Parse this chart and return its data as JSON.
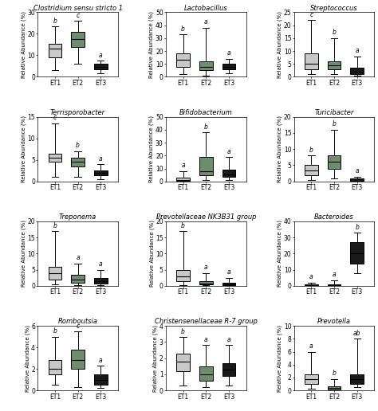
{
  "panels": [
    {
      "title": "Clostridium sensu stricto 1",
      "ylim": [
        0,
        30
      ],
      "yticks": [
        0,
        10,
        20,
        30
      ],
      "boxes": [
        {
          "label": "ET1",
          "whislo": 3.0,
          "q1": 9.0,
          "med": 13.0,
          "q3": 15.5,
          "whishi": 23.5,
          "sig": "b",
          "color": "#c8c8c8"
        },
        {
          "label": "ET2",
          "whislo": 6.0,
          "q1": 14.0,
          "med": 17.5,
          "q3": 21.0,
          "whishi": 26.0,
          "sig": "c",
          "color": "#6e8c6e"
        },
        {
          "label": "ET3",
          "whislo": 1.5,
          "q1": 3.5,
          "med": 4.5,
          "q3": 6.0,
          "whishi": 7.5,
          "sig": "a",
          "color": "#1a1a1a"
        }
      ]
    },
    {
      "title": "Lactobacillus",
      "ylim": [
        0,
        50
      ],
      "yticks": [
        0,
        10,
        20,
        30,
        40,
        50
      ],
      "boxes": [
        {
          "label": "ET1",
          "whislo": 2.0,
          "q1": 8.0,
          "med": 13.0,
          "q3": 18.0,
          "whishi": 33.0,
          "sig": "b",
          "color": "#c8c8c8"
        },
        {
          "label": "ET2",
          "whislo": 1.0,
          "q1": 5.0,
          "med": 8.0,
          "q3": 12.0,
          "whishi": 38.0,
          "sig": "a",
          "color": "#6e8c6e"
        },
        {
          "label": "ET3",
          "whislo": 3.0,
          "q1": 6.0,
          "med": 8.0,
          "q3": 10.0,
          "whishi": 14.0,
          "sig": "a",
          "color": "#1a1a1a"
        }
      ]
    },
    {
      "title": "Streptococcus",
      "ylim": [
        0,
        25
      ],
      "yticks": [
        0,
        5,
        10,
        15,
        20,
        25
      ],
      "boxes": [
        {
          "label": "ET1",
          "whislo": 1.0,
          "q1": 3.0,
          "med": 5.0,
          "q3": 9.0,
          "whishi": 22.0,
          "sig": "c",
          "color": "#c8c8c8"
        },
        {
          "label": "ET2",
          "whislo": 1.0,
          "q1": 3.0,
          "med": 4.5,
          "q3": 6.0,
          "whishi": 15.0,
          "sig": "b",
          "color": "#6e8c6e"
        },
        {
          "label": "ET3",
          "whislo": 0.5,
          "q1": 1.0,
          "med": 2.0,
          "q3": 3.5,
          "whishi": 8.0,
          "sig": "a",
          "color": "#1a1a1a"
        }
      ]
    },
    {
      "title": "Terrisporobacter",
      "ylim": [
        0,
        15
      ],
      "yticks": [
        0,
        5,
        10,
        15
      ],
      "boxes": [
        {
          "label": "ET1",
          "whislo": 1.0,
          "q1": 4.5,
          "med": 5.5,
          "q3": 6.5,
          "whishi": 13.5,
          "sig": "c",
          "color": "#c8c8c8"
        },
        {
          "label": "ET2",
          "whislo": 1.0,
          "q1": 3.5,
          "med": 4.5,
          "q3": 5.5,
          "whishi": 7.0,
          "sig": "b",
          "color": "#6e8c6e"
        },
        {
          "label": "ET3",
          "whislo": 0.5,
          "q1": 1.5,
          "med": 2.0,
          "q3": 2.5,
          "whishi": 4.0,
          "sig": "a",
          "color": "#1a1a1a"
        }
      ]
    },
    {
      "title": "Bifidobacterium",
      "ylim": [
        0,
        50
      ],
      "yticks": [
        0,
        10,
        20,
        30,
        40,
        50
      ],
      "boxes": [
        {
          "label": "ET1",
          "whislo": 0.2,
          "q1": 0.5,
          "med": 1.0,
          "q3": 3.0,
          "whishi": 8.0,
          "sig": "a",
          "color": "#c8c8c8"
        },
        {
          "label": "ET2",
          "whislo": 1.0,
          "q1": 5.0,
          "med": 8.0,
          "q3": 19.0,
          "whishi": 38.0,
          "sig": "b",
          "color": "#6e8c6e"
        },
        {
          "label": "ET3",
          "whislo": 1.0,
          "q1": 3.5,
          "med": 5.5,
          "q3": 9.0,
          "whishi": 19.0,
          "sig": "a",
          "color": "#1a1a1a"
        }
      ]
    },
    {
      "title": "Turicibacter",
      "ylim": [
        0,
        20
      ],
      "yticks": [
        0,
        5,
        10,
        15,
        20
      ],
      "boxes": [
        {
          "label": "ET1",
          "whislo": 0.5,
          "q1": 2.0,
          "med": 3.5,
          "q3": 5.0,
          "whishi": 8.0,
          "sig": "b",
          "color": "#c8c8c8"
        },
        {
          "label": "ET2",
          "whislo": 1.0,
          "q1": 4.0,
          "med": 6.0,
          "q3": 8.0,
          "whishi": 16.0,
          "sig": "b",
          "color": "#6e8c6e"
        },
        {
          "label": "ET3",
          "whislo": 0.0,
          "q1": 0.1,
          "med": 0.3,
          "q3": 0.8,
          "whishi": 1.5,
          "sig": "a",
          "color": "#1a1a1a"
        }
      ]
    },
    {
      "title": "Treponema",
      "ylim": [
        0,
        20
      ],
      "yticks": [
        0,
        5,
        10,
        15,
        20
      ],
      "boxes": [
        {
          "label": "ET1",
          "whislo": 0.5,
          "q1": 2.0,
          "med": 4.0,
          "q3": 6.0,
          "whishi": 17.0,
          "sig": "b",
          "color": "#c8c8c8"
        },
        {
          "label": "ET2",
          "whislo": 0.3,
          "q1": 1.0,
          "med": 2.0,
          "q3": 3.5,
          "whishi": 7.0,
          "sig": "a",
          "color": "#6e8c6e"
        },
        {
          "label": "ET3",
          "whislo": 0.3,
          "q1": 0.8,
          "med": 1.5,
          "q3": 2.5,
          "whishi": 5.0,
          "sig": "a",
          "color": "#1a1a1a"
        }
      ]
    },
    {
      "title": "Prevotellaceae NK3B31 group",
      "ylim": [
        0,
        20
      ],
      "yticks": [
        0,
        5,
        10,
        15,
        20
      ],
      "boxes": [
        {
          "label": "ET1",
          "whislo": 0.3,
          "q1": 1.5,
          "med": 3.0,
          "q3": 5.0,
          "whishi": 17.0,
          "sig": "b",
          "color": "#c8c8c8"
        },
        {
          "label": "ET2",
          "whislo": 0.2,
          "q1": 0.4,
          "med": 0.8,
          "q3": 1.5,
          "whishi": 4.0,
          "sig": "a",
          "color": "#6e8c6e"
        },
        {
          "label": "ET3",
          "whislo": 0.1,
          "q1": 0.3,
          "med": 0.6,
          "q3": 1.0,
          "whishi": 2.5,
          "sig": "a",
          "color": "#1a1a1a"
        }
      ]
    },
    {
      "title": "Bacteroides",
      "ylim": [
        0,
        40
      ],
      "yticks": [
        0,
        10,
        20,
        30,
        40
      ],
      "boxes": [
        {
          "label": "ET1",
          "whislo": 0.1,
          "q1": 0.3,
          "med": 0.5,
          "q3": 1.0,
          "whishi": 2.0,
          "sig": "a",
          "color": "#c8c8c8"
        },
        {
          "label": "ET2",
          "whislo": 0.1,
          "q1": 0.3,
          "med": 0.5,
          "q3": 1.0,
          "whishi": 3.5,
          "sig": "a",
          "color": "#6e8c6e"
        },
        {
          "label": "ET3",
          "whislo": 8.0,
          "q1": 14.0,
          "med": 20.0,
          "q3": 27.0,
          "whishi": 33.0,
          "sig": "b",
          "color": "#1a1a1a"
        }
      ]
    },
    {
      "title": "Romboutsia",
      "ylim": [
        0,
        6
      ],
      "yticks": [
        0,
        2,
        4,
        6
      ],
      "boxes": [
        {
          "label": "ET1",
          "whislo": 0.5,
          "q1": 1.5,
          "med": 2.0,
          "q3": 2.8,
          "whishi": 5.0,
          "sig": "b",
          "color": "#c8c8c8"
        },
        {
          "label": "ET2",
          "whislo": 0.3,
          "q1": 2.0,
          "med": 2.8,
          "q3": 3.8,
          "whishi": 5.5,
          "sig": "c",
          "color": "#6e8c6e"
        },
        {
          "label": "ET3",
          "whislo": 0.2,
          "q1": 0.5,
          "med": 1.0,
          "q3": 1.5,
          "whishi": 2.3,
          "sig": "a",
          "color": "#1a1a1a"
        }
      ]
    },
    {
      "title": "Christensenellaceae R-7 group",
      "ylim": [
        0,
        4
      ],
      "yticks": [
        0,
        1,
        2,
        3,
        4
      ],
      "boxes": [
        {
          "label": "ET1",
          "whislo": 0.3,
          "q1": 1.2,
          "med": 1.8,
          "q3": 2.3,
          "whishi": 3.3,
          "sig": "b",
          "color": "#c8c8c8"
        },
        {
          "label": "ET2",
          "whislo": 0.2,
          "q1": 0.6,
          "med": 1.0,
          "q3": 1.5,
          "whishi": 2.8,
          "sig": "a",
          "color": "#6e8c6e"
        },
        {
          "label": "ET3",
          "whislo": 0.3,
          "q1": 0.9,
          "med": 1.3,
          "q3": 1.7,
          "whishi": 2.8,
          "sig": "a",
          "color": "#1a1a1a"
        }
      ]
    },
    {
      "title": "Prevotella",
      "ylim": [
        0,
        10
      ],
      "yticks": [
        0,
        2,
        4,
        6,
        8,
        10
      ],
      "boxes": [
        {
          "label": "ET1",
          "whislo": 0.3,
          "q1": 1.0,
          "med": 1.8,
          "q3": 2.5,
          "whishi": 6.0,
          "sig": "a",
          "color": "#c8c8c8"
        },
        {
          "label": "ET2",
          "whislo": 0.1,
          "q1": 0.2,
          "med": 0.4,
          "q3": 0.7,
          "whishi": 1.8,
          "sig": "b",
          "color": "#6e8c6e"
        },
        {
          "label": "ET3",
          "whislo": 0.5,
          "q1": 1.0,
          "med": 1.8,
          "q3": 2.5,
          "whishi": 8.0,
          "sig": "ab",
          "color": "#1a1a1a"
        }
      ]
    }
  ],
  "ylabel": "Relative Abundance (%)",
  "sig_fontsize": 5.5,
  "title_fontsize": 6.0,
  "tick_fontsize": 5.5,
  "label_fontsize": 5.0
}
